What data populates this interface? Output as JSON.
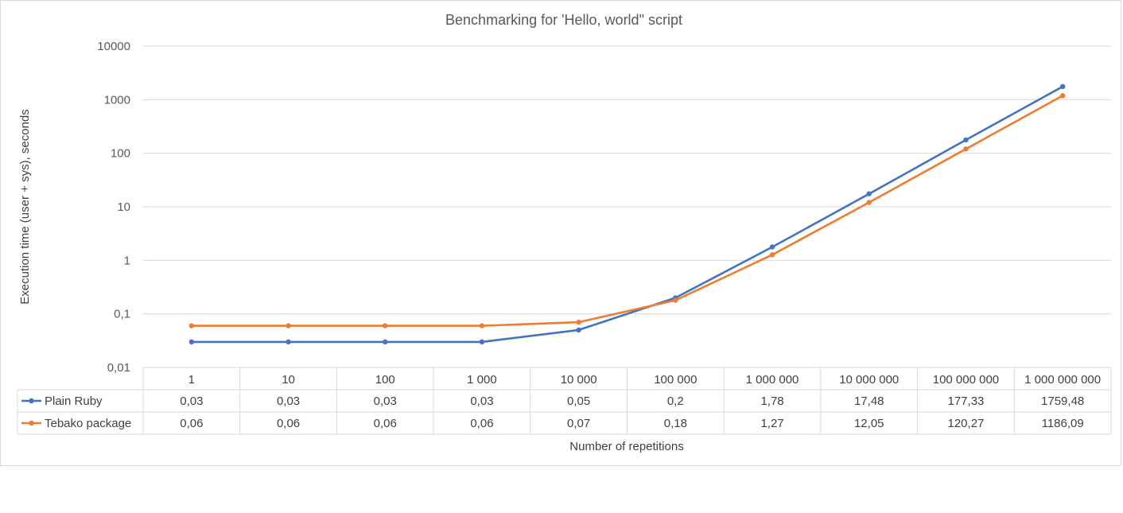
{
  "chart_data": {
    "type": "line",
    "title": "Benchmarking for 'Hello, world\" script",
    "xlabel": "Number of repetitions",
    "ylabel": "Execution time (user + sys), seconds",
    "yscale": "log",
    "ylim": [
      0.01,
      10000
    ],
    "yticks": [
      0.01,
      0.1,
      1,
      10,
      100,
      1000,
      10000
    ],
    "ytick_labels": [
      "0,01",
      "0,1",
      "1",
      "10",
      "100",
      "1000",
      "10000"
    ],
    "categories": [
      "1",
      "10",
      "100",
      "1 000",
      "10 000",
      "100 000",
      "1 000 000",
      "10 000 000",
      "100 000 000",
      "1 000 000 000"
    ],
    "grid": true,
    "legend": "data-table",
    "series": [
      {
        "name": "Plain Ruby",
        "color": "#4472c4",
        "values": [
          0.03,
          0.03,
          0.03,
          0.03,
          0.05,
          0.2,
          1.78,
          17.48,
          177.33,
          1759.48
        ],
        "labels": [
          "0,03",
          "0,03",
          "0,03",
          "0,03",
          "0,05",
          "0,2",
          "1,78",
          "17,48",
          "177,33",
          "1759,48"
        ]
      },
      {
        "name": "Tebako package",
        "color": "#ed7d31",
        "values": [
          0.06,
          0.06,
          0.06,
          0.06,
          0.07,
          0.18,
          1.27,
          12.05,
          120.27,
          1186.09
        ],
        "labels": [
          "0,06",
          "0,06",
          "0,06",
          "0,06",
          "0,07",
          "0,18",
          "1,27",
          "12,05",
          "120,27",
          "1186,09"
        ]
      }
    ]
  }
}
